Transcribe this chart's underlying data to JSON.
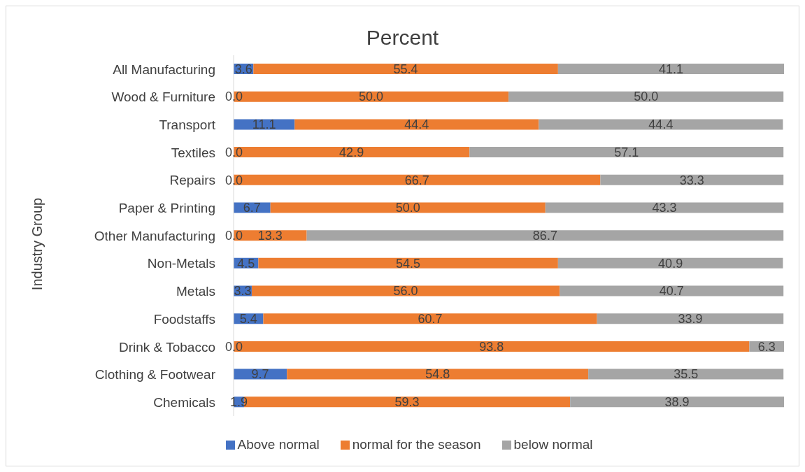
{
  "chart_data": {
    "type": "bar",
    "orientation": "horizontal",
    "stacked": true,
    "title": "Percent",
    "ylabel": "Industry Group",
    "legend": "bottom",
    "grid": false,
    "categories": [
      "All Manufacturing",
      "Wood & Furniture",
      "Transport",
      "Textiles",
      "Repairs",
      "Paper & Printing",
      "Other Manufacturing",
      "Non-Metals",
      "Metals",
      "Foodstaffs",
      "Drink & Tobacco",
      "Clothing & Footwear",
      "Chemicals"
    ],
    "series": [
      {
        "name": "Above normal",
        "color": "#4472c4",
        "values": [
          3.6,
          0.0,
          11.1,
          0.0,
          0.0,
          6.7,
          0.0,
          4.5,
          3.3,
          5.4,
          0.0,
          9.7,
          1.9
        ],
        "value_labels": [
          "3.6",
          "0.0",
          "11.1",
          "0.0",
          "0.0",
          "6.7",
          "0.0",
          "4.5",
          "3.3",
          "5.4",
          "0.0",
          "9.7",
          "1.9"
        ]
      },
      {
        "name": "normal for the season",
        "color": "#ed7d31",
        "values": [
          55.4,
          50.0,
          44.4,
          42.9,
          66.7,
          50.0,
          13.3,
          54.5,
          56.0,
          60.7,
          93.8,
          54.8,
          59.3
        ],
        "value_labels": [
          "55.4",
          "50.0",
          "44.4",
          "42.9",
          "66.7",
          "50.0",
          "13.3",
          "54.5",
          "56.0",
          "60.7",
          "93.8",
          "54.8",
          "59.3"
        ]
      },
      {
        "name": "below normal",
        "color": "#a5a5a5",
        "values": [
          41.1,
          50.0,
          44.4,
          57.1,
          33.3,
          43.3,
          86.7,
          40.9,
          40.7,
          33.9,
          6.3,
          35.5,
          38.9
        ],
        "value_labels": [
          "41.1",
          "50.0",
          "44.4",
          "57.1",
          "33.3",
          "43.3",
          "86.7",
          "40.9",
          "40.7",
          "33.9",
          "6.3",
          "35.5",
          "38.9"
        ]
      }
    ]
  }
}
